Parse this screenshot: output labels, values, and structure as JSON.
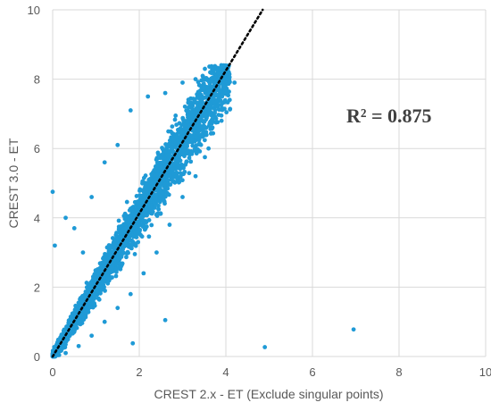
{
  "chart_data": {
    "type": "scatter",
    "title": "",
    "xlabel": "CREST 2.x - ET (Exclude singular points)",
    "ylabel": "CREST 3.0 - ET",
    "xlim": [
      0,
      10
    ],
    "ylim": [
      0,
      10
    ],
    "x_ticks": [
      "0",
      "2",
      "4",
      "6",
      "8",
      "10"
    ],
    "y_ticks": [
      "0",
      "2",
      "4",
      "6",
      "8",
      "10"
    ],
    "grid": true,
    "legend": "none",
    "annotation": "R² = 0.875",
    "colors": {
      "points": "#1f9ad6",
      "trendline": "#000000",
      "grid": "#d9d9d9"
    },
    "series": [
      {
        "marker": "circle",
        "note_points": "dense cluster approximated below; outliers listed explicitly",
        "points": [
          [
            0.0,
            4.75
          ],
          [
            0.05,
            3.2
          ],
          [
            0.3,
            4.0
          ],
          [
            0.5,
            3.7
          ],
          [
            0.7,
            3.0
          ],
          [
            0.9,
            4.6
          ],
          [
            1.2,
            5.6
          ],
          [
            1.5,
            6.1
          ],
          [
            1.8,
            7.1
          ],
          [
            2.2,
            7.5
          ],
          [
            2.6,
            7.6
          ],
          [
            3.0,
            7.9
          ],
          [
            3.3,
            8.0
          ],
          [
            3.7,
            8.3
          ],
          [
            3.9,
            8.1
          ],
          [
            4.2,
            7.9
          ],
          [
            4.0,
            7.6
          ],
          [
            3.9,
            6.8
          ],
          [
            3.6,
            6.0
          ],
          [
            3.3,
            5.2
          ],
          [
            3.0,
            4.6
          ],
          [
            2.7,
            3.8
          ],
          [
            2.4,
            3.0
          ],
          [
            2.1,
            2.4
          ],
          [
            1.8,
            1.8
          ],
          [
            1.5,
            1.4
          ],
          [
            1.2,
            1.0
          ],
          [
            0.9,
            0.6
          ],
          [
            0.6,
            0.3
          ],
          [
            0.3,
            0.1
          ],
          [
            1.85,
            0.38
          ],
          [
            2.6,
            1.05
          ],
          [
            4.9,
            0.27
          ],
          [
            6.95,
            0.78
          ],
          [
            0.1,
            0.2
          ],
          [
            0.2,
            0.6
          ],
          [
            0.4,
            1.0
          ],
          [
            0.6,
            1.4
          ],
          [
            0.8,
            1.8
          ],
          [
            1.0,
            2.2
          ],
          [
            1.2,
            2.6
          ],
          [
            1.4,
            3.0
          ],
          [
            1.6,
            3.4
          ],
          [
            1.8,
            3.8
          ],
          [
            2.0,
            4.2
          ],
          [
            2.2,
            4.6
          ],
          [
            2.4,
            5.0
          ],
          [
            2.6,
            5.4
          ],
          [
            2.8,
            5.8
          ],
          [
            3.0,
            6.2
          ],
          [
            3.2,
            6.6
          ],
          [
            3.4,
            7.0
          ],
          [
            3.6,
            7.4
          ],
          [
            3.8,
            7.8
          ]
        ]
      }
    ],
    "trendline": {
      "style": "dotted",
      "from": [
        0,
        0
      ],
      "to": [
        4.85,
        10
      ]
    }
  }
}
